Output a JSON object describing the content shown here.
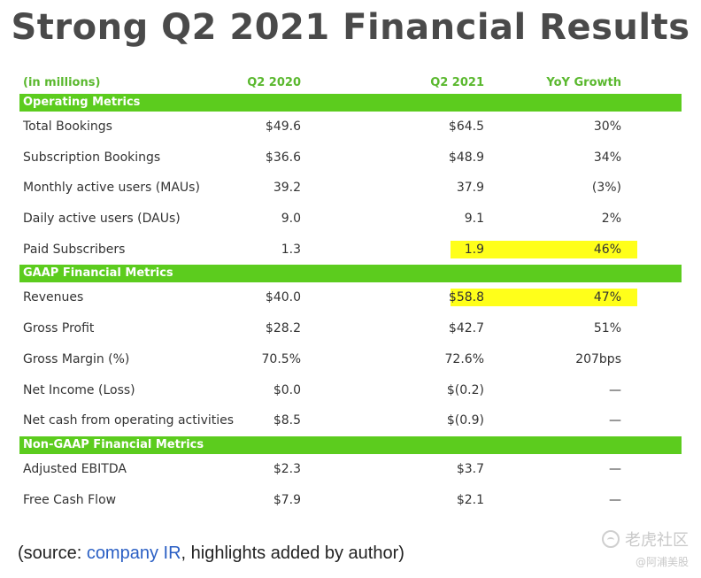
{
  "title": "Strong Q2 2021 Financial Results",
  "columns": {
    "label": "(in millions)",
    "q2_2020": "Q2 2020",
    "q2_2021": "Q2 2021",
    "yoy": "YoY Growth"
  },
  "sections": [
    {
      "title": "Operating Metrics",
      "rows": [
        {
          "label": "Total Bookings",
          "q2_2020": "$49.6",
          "q2_2021": "$64.5",
          "yoy": "30%"
        },
        {
          "label": "Subscription Bookings",
          "q2_2020": "$36.6",
          "q2_2021": "$48.9",
          "yoy": "34%"
        },
        {
          "label": "Monthly active users (MAUs)",
          "q2_2020": "39.2",
          "q2_2021": "37.9",
          "yoy": "(3%)"
        },
        {
          "label": "Daily active users (DAUs)",
          "q2_2020": "9.0",
          "q2_2021": "9.1",
          "yoy": "2%"
        },
        {
          "label": "Paid Subscribers",
          "q2_2020": "1.3",
          "q2_2021": "1.9",
          "yoy": "46%",
          "highlight": true
        }
      ]
    },
    {
      "title": "GAAP Financial Metrics",
      "rows": [
        {
          "label": "Revenues",
          "q2_2020": "$40.0",
          "q2_2021": "$58.8",
          "yoy": "47%",
          "highlight": true
        },
        {
          "label": "Gross Profit",
          "q2_2020": "$28.2",
          "q2_2021": "$42.7",
          "yoy": "51%"
        },
        {
          "label": "Gross Margin (%)",
          "q2_2020": "70.5%",
          "q2_2021": "72.6%",
          "yoy": "207bps"
        },
        {
          "label": "Net Income (Loss)",
          "q2_2020": "$0.0",
          "q2_2021": "$(0.2)",
          "yoy": "—"
        },
        {
          "label": "Net cash from operating activities",
          "q2_2020": "$8.5",
          "q2_2021": "$(0.9)",
          "yoy": "—"
        }
      ]
    },
    {
      "title": "Non-GAAP Financial Metrics",
      "rows": [
        {
          "label": "Adjusted EBITDA",
          "q2_2020": "$2.3",
          "q2_2021": "$3.7",
          "yoy": "—"
        },
        {
          "label": "Free Cash Flow",
          "q2_2020": "$7.9",
          "q2_2021": "$2.1",
          "yoy": "—"
        }
      ]
    }
  ],
  "colors": {
    "accent_green": "#5ccc1e",
    "header_green": "#5ab82e",
    "highlight_yellow": "#ffff1a",
    "link_blue": "#2a5fc4"
  },
  "source": {
    "prefix": "(source: ",
    "link": "company IR",
    "suffix": ", highlights added by author)"
  },
  "watermark": {
    "main": "老虎社区",
    "sub": "@阿浦美股",
    "icon": "tiger-logo-icon"
  }
}
